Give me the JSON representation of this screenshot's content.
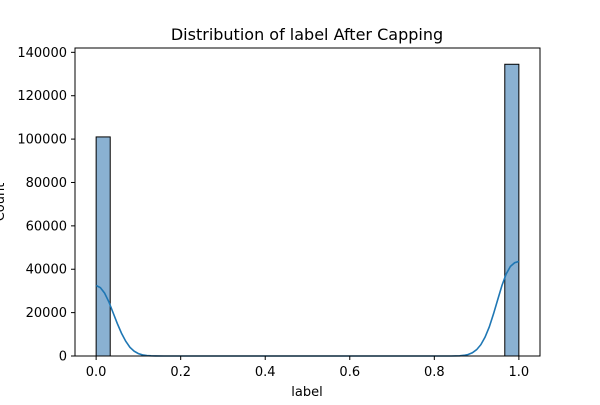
{
  "chart_data": {
    "type": "bar",
    "title": "Distribution of label After Capping",
    "xlabel": "label",
    "ylabel": "Count",
    "xlim": [
      -0.05,
      1.05
    ],
    "ylim": [
      0,
      142000
    ],
    "x_ticks": [
      0.0,
      0.2,
      0.4,
      0.6,
      0.8,
      1.0
    ],
    "x_tick_labels": [
      "0.0",
      "0.2",
      "0.4",
      "0.6",
      "0.8",
      "1.0"
    ],
    "y_ticks": [
      0,
      20000,
      40000,
      60000,
      80000,
      100000,
      120000,
      140000
    ],
    "y_tick_labels": [
      "0",
      "20000",
      "40000",
      "60000",
      "80000",
      "100000",
      "120000",
      "140000"
    ],
    "bins": [
      {
        "x0": 0.0,
        "x1": 0.0333,
        "count": 101000
      },
      {
        "x0": 0.9667,
        "x1": 1.0,
        "count": 134500
      }
    ],
    "kde": {
      "x": [
        0.0,
        0.01,
        0.02,
        0.03,
        0.04,
        0.05,
        0.06,
        0.07,
        0.08,
        0.09,
        0.1,
        0.11,
        0.12,
        0.13,
        0.14,
        0.16,
        0.2,
        0.3,
        0.4,
        0.5,
        0.6,
        0.7,
        0.8,
        0.84,
        0.86,
        0.87,
        0.88,
        0.89,
        0.9,
        0.91,
        0.92,
        0.93,
        0.94,
        0.95,
        0.96,
        0.97,
        0.98,
        0.99,
        1.0
      ],
      "y": [
        32500,
        31500,
        29000,
        25000,
        20000,
        15000,
        10500,
        6800,
        4000,
        2200,
        1100,
        500,
        200,
        80,
        30,
        0,
        0,
        0,
        0,
        0,
        0,
        0,
        0,
        0,
        100,
        300,
        700,
        1500,
        2900,
        5200,
        8700,
        13400,
        19400,
        26000,
        32500,
        37800,
        41300,
        43000,
        43600
      ]
    },
    "bar_color": "#8ab1d2",
    "bar_edge_color": "#000000",
    "line_color": "#1f77b4",
    "grid": false,
    "legend": "none"
  }
}
